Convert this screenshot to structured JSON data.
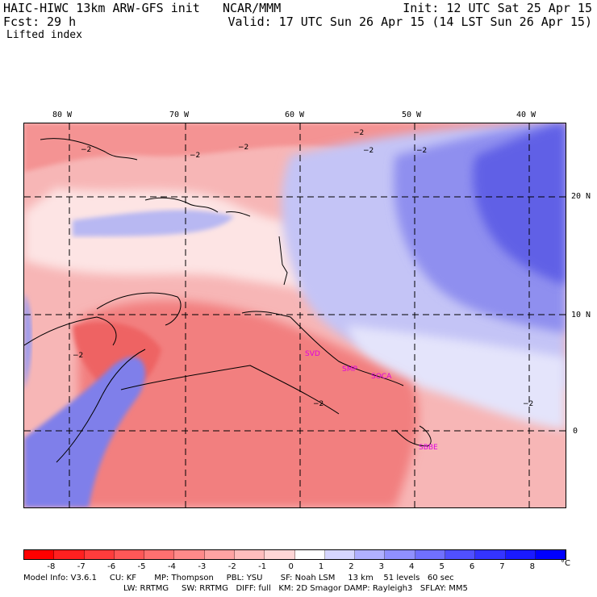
{
  "header": {
    "model": "HAIC-HIWC 13km ARW-GFS init",
    "org": "NCAR/MMM",
    "init": "Init: 12 UTC Sat 25 Apr 15",
    "fcst_label": "Fcst:",
    "fcst_value": "29 h",
    "valid": "Valid: 17 UTC Sun 26 Apr 15 (14 LST Sun 26 Apr 15)",
    "field": "Lifted index"
  },
  "map": {
    "lon_ticks": [
      "80 W",
      "70 W",
      "60 W",
      "50 W",
      "40 W"
    ],
    "lat_ticks": [
      "20 N",
      "10 N",
      "0"
    ],
    "contour_label": "-2",
    "stations": [
      "SVD",
      "SMP",
      "SOCA",
      "SBBE"
    ]
  },
  "colorbar": {
    "labels": [
      "-8",
      "-7",
      "-6",
      "-5",
      "-4",
      "-3",
      "-2",
      "-1",
      "0",
      "1",
      "2",
      "3",
      "4",
      "5",
      "6",
      "7",
      "8"
    ],
    "unit": "°C",
    "colors": [
      "#ff0000",
      "#ff2020",
      "#ff3c3c",
      "#ff5757",
      "#ff7070",
      "#ff8a8a",
      "#ffa3a3",
      "#ffbdbd",
      "#ffd6d6",
      "#ffffff",
      "#d6d6ff",
      "#b0b0ff",
      "#9090ff",
      "#7070ff",
      "#5050ff",
      "#3434ff",
      "#1a1aff",
      "#0000ff"
    ]
  },
  "footer": {
    "line1": "Model Info: V3.6.1     CU: KF       MP: Thompson     PBL: YSU       SF: Noah LSM     13 km    51 levels   60 sec",
    "line2": "LW: RRTMG     SW: RRTMG   DIFF: full   KM: 2D Smagor DAMP: Rayleigh3   SFLAY: MM5"
  }
}
